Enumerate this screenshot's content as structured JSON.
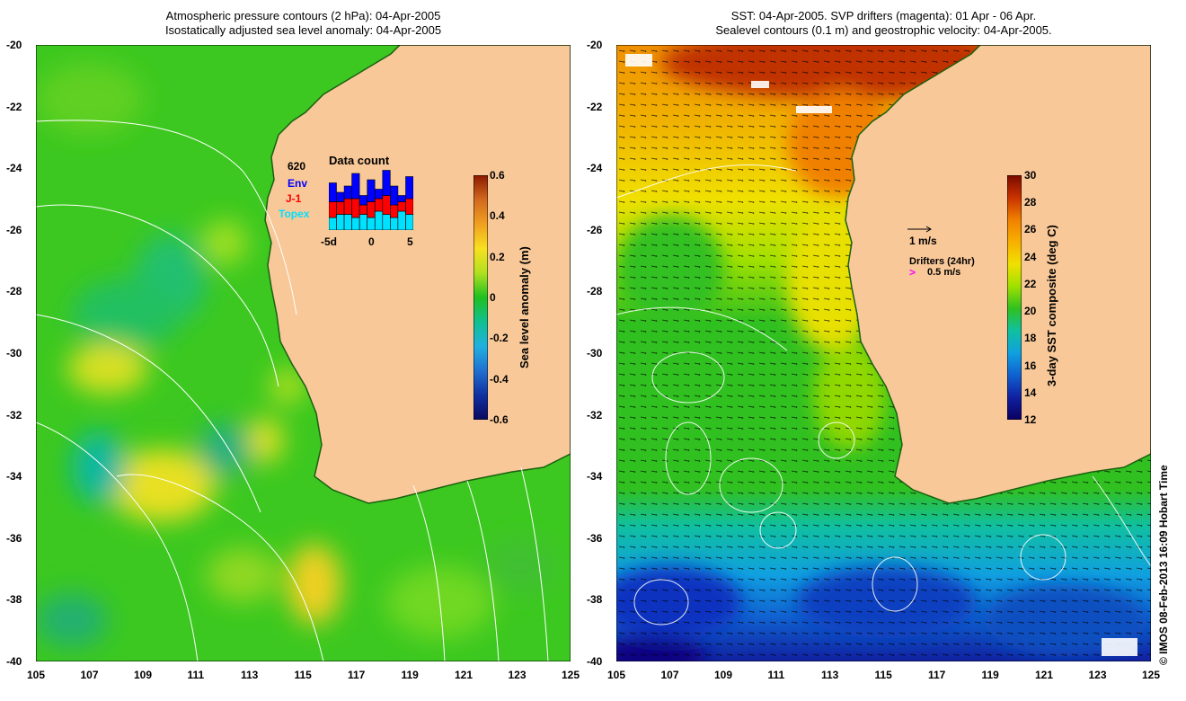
{
  "left": {
    "title_line1": "Atmospheric pressure contours (2 hPa): 04-Apr-2005",
    "title_line2": "Isostatically adjusted sea level anomaly: 04-Apr-2005",
    "colorbar_label": "Sea level anomaly (m)",
    "colorbar_ticks": [
      "0.6",
      "0.4",
      "0.2",
      "0",
      "-0.2",
      "-0.4",
      "-0.6"
    ],
    "colorbar_colors": [
      "#8b1a00",
      "#d2691e",
      "#f0a020",
      "#f8e020",
      "#b0e020",
      "#20c020",
      "#10c090",
      "#20b0e0",
      "#2070d0",
      "#1030a0",
      "#0a0a60"
    ],
    "data_count": {
      "title": "Data count",
      "count": "620",
      "legend": [
        {
          "name": "Env",
          "color": "#0000ff"
        },
        {
          "name": "J-1",
          "color": "#ff0000"
        },
        {
          "name": "Topex",
          "color": "#00e0ff"
        }
      ],
      "x_labels": [
        "-5d",
        "0",
        "5"
      ],
      "bars": [
        {
          "topex": 4,
          "j1": 5,
          "env": 6
        },
        {
          "topex": 5,
          "j1": 4,
          "env": 3
        },
        {
          "topex": 5,
          "j1": 5,
          "env": 4
        },
        {
          "topex": 4,
          "j1": 6,
          "env": 8
        },
        {
          "topex": 5,
          "j1": 3,
          "env": 3
        },
        {
          "topex": 4,
          "j1": 5,
          "env": 7
        },
        {
          "topex": 6,
          "j1": 4,
          "env": 3
        },
        {
          "topex": 5,
          "j1": 6,
          "env": 8
        },
        {
          "topex": 4,
          "j1": 4,
          "env": 6
        },
        {
          "topex": 6,
          "j1": 3,
          "env": 2
        },
        {
          "topex": 5,
          "j1": 5,
          "env": 7
        }
      ]
    }
  },
  "right": {
    "title_line1": "SST: 04-Apr-2005. SVP drifters (magenta): 01 Apr - 06 Apr.",
    "title_line2": "Sealevel contours (0.1 m) and geostrophic velocity: 04-Apr-2005.",
    "colorbar_label": "3-day SST composite (deg C)",
    "colorbar_ticks": [
      "30",
      "28",
      "26",
      "24",
      "22",
      "20",
      "18",
      "16",
      "14",
      "12"
    ],
    "colorbar_colors": [
      "#7a0a00",
      "#c83200",
      "#f08000",
      "#f8b000",
      "#f0e000",
      "#a0e000",
      "#30c020",
      "#10c0a0",
      "#10a0e0",
      "#1060d0",
      "#1020a0",
      "#0a0060"
    ],
    "velocity_key": "1 m/s",
    "drifters_label": "Drifters (24hr)",
    "drifter_speed": "0.5 m/s"
  },
  "axes": {
    "lat_ticks": [
      "-20",
      "-22",
      "-24",
      "-26",
      "-28",
      "-30",
      "-32",
      "-34",
      "-36",
      "-38",
      "-40"
    ],
    "lon_ticks": [
      "105",
      "107",
      "109",
      "111",
      "113",
      "115",
      "117",
      "119",
      "121",
      "123",
      "125"
    ]
  },
  "credit": "© IMOS 08-Feb-2013 16:09 Hobart Time",
  "colors": {
    "land": "#f8c898",
    "ocean_left": "#30c020",
    "ocean_right": "#30c020"
  }
}
